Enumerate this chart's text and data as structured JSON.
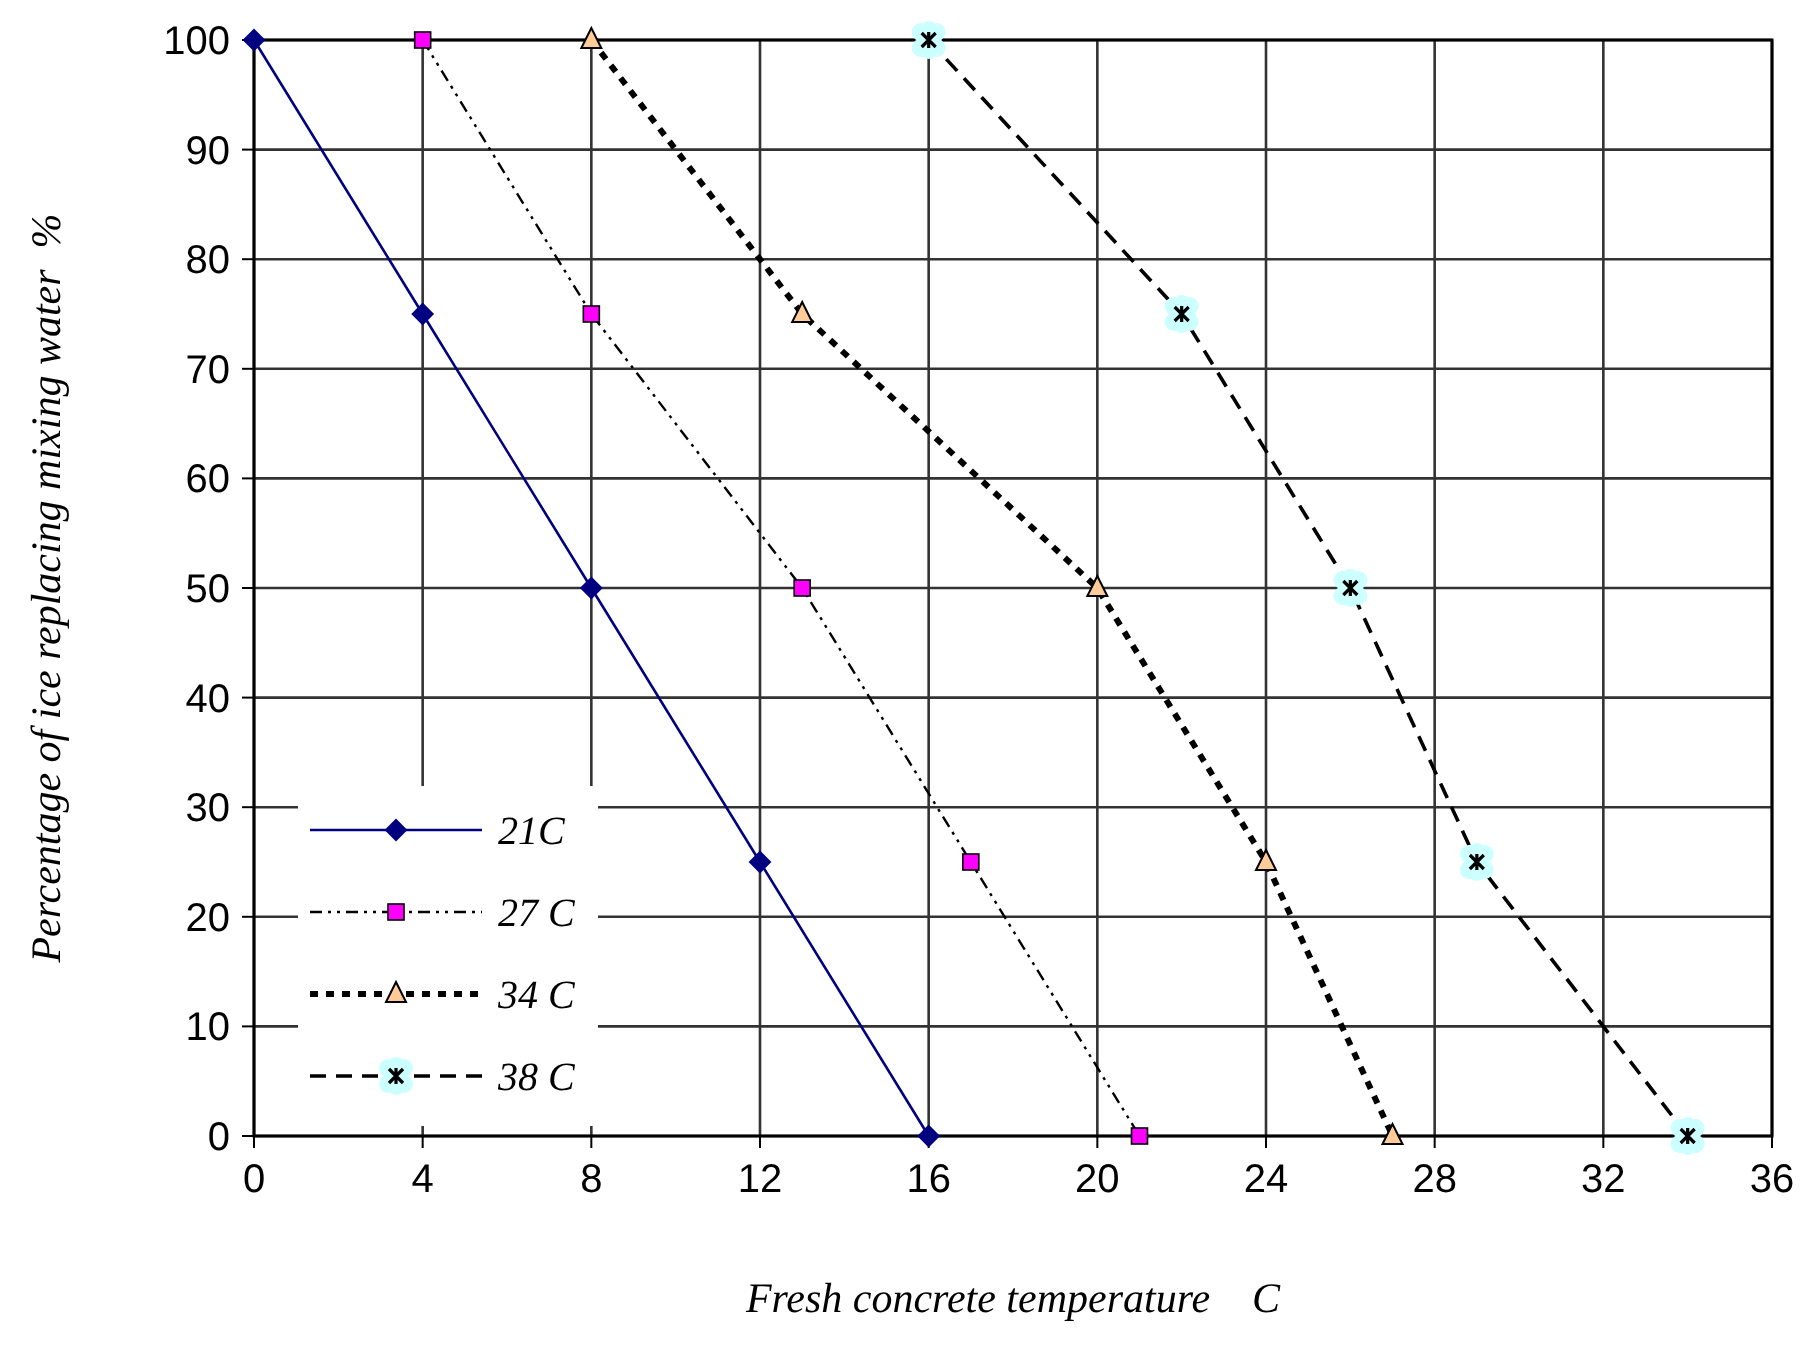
{
  "chart_data": {
    "type": "line",
    "xlabel": "Fresh concrete temperature    C",
    "ylabel": "Percentage of ice replacing mixing water  %",
    "xlim": [
      0,
      36
    ],
    "xticks": [
      0,
      4,
      8,
      12,
      16,
      20,
      24,
      28,
      32,
      36
    ],
    "ylim": [
      0,
      100
    ],
    "yticks": [
      0,
      10,
      20,
      30,
      40,
      50,
      60,
      70,
      80,
      90,
      100
    ],
    "grid": true,
    "legend": "bottom left",
    "series": [
      {
        "name": "21C",
        "color": "#000080",
        "marker": "diamond",
        "line_style": "solid",
        "x": [
          0,
          4,
          8,
          12,
          16
        ],
        "values": [
          100,
          75,
          50,
          25,
          0
        ]
      },
      {
        "name": "27 C",
        "color": "#ff00ff",
        "marker": "square",
        "line_style": "dashdot",
        "x": [
          4,
          8,
          13,
          17,
          21
        ],
        "values": [
          100,
          75,
          50,
          25,
          0
        ]
      },
      {
        "name": "34 C",
        "color": "#ffcc99",
        "marker": "triangle",
        "line_style": "dotted",
        "x": [
          8,
          13,
          20,
          24,
          27
        ],
        "values": [
          100,
          75,
          50,
          25,
          0
        ]
      },
      {
        "name": "38 C",
        "color": "#ccffff",
        "marker": "cross",
        "line_style": "dashed",
        "x": [
          16,
          22,
          26,
          29,
          34
        ],
        "values": [
          100,
          75,
          50,
          25,
          0
        ]
      }
    ]
  }
}
